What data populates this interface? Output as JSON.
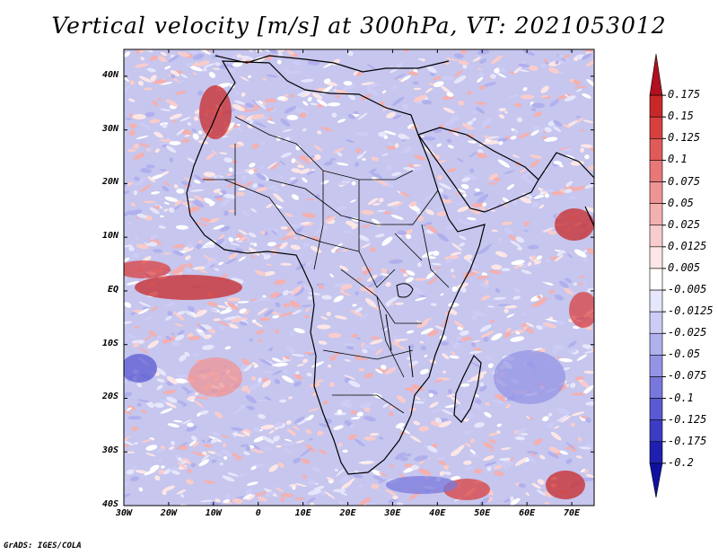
{
  "title": "Vertical velocity [m/s] at 300hPa, VT: 2021053012",
  "footer": "GrADS: IGES/COLA",
  "map": {
    "lat_labels": [
      "40N",
      "30N",
      "20N",
      "10N",
      "EQ",
      "10S",
      "20S",
      "30S",
      "40S"
    ],
    "lon_labels": [
      "30W",
      "20W",
      "10W",
      "0",
      "10E",
      "20E",
      "30E",
      "40E",
      "50E",
      "60E",
      "70E"
    ],
    "lon_range": [
      -30,
      75
    ],
    "lat_range": [
      -40,
      45
    ]
  },
  "colorbar": {
    "labels": [
      "0.175",
      "0.15",
      "0.125",
      "0.1",
      "0.075",
      "0.05",
      "0.025",
      "0.0125",
      "0.005",
      "-0.005",
      "-0.0125",
      "-0.025",
      "-0.05",
      "-0.075",
      "-0.1",
      "-0.125",
      "-0.175",
      "-0.2"
    ],
    "colors": [
      "#b01020",
      "#c82828",
      "#d84040",
      "#e05a5a",
      "#e87878",
      "#ee9494",
      "#f4b0b0",
      "#f8cccc",
      "#fce6e6",
      "#ffffff",
      "#e6e6fc",
      "#ccccf6",
      "#b0b0ee",
      "#9494e6",
      "#7878dc",
      "#5a5ad2",
      "#3c3cc4",
      "#2020b0",
      "#1010a0"
    ]
  }
}
